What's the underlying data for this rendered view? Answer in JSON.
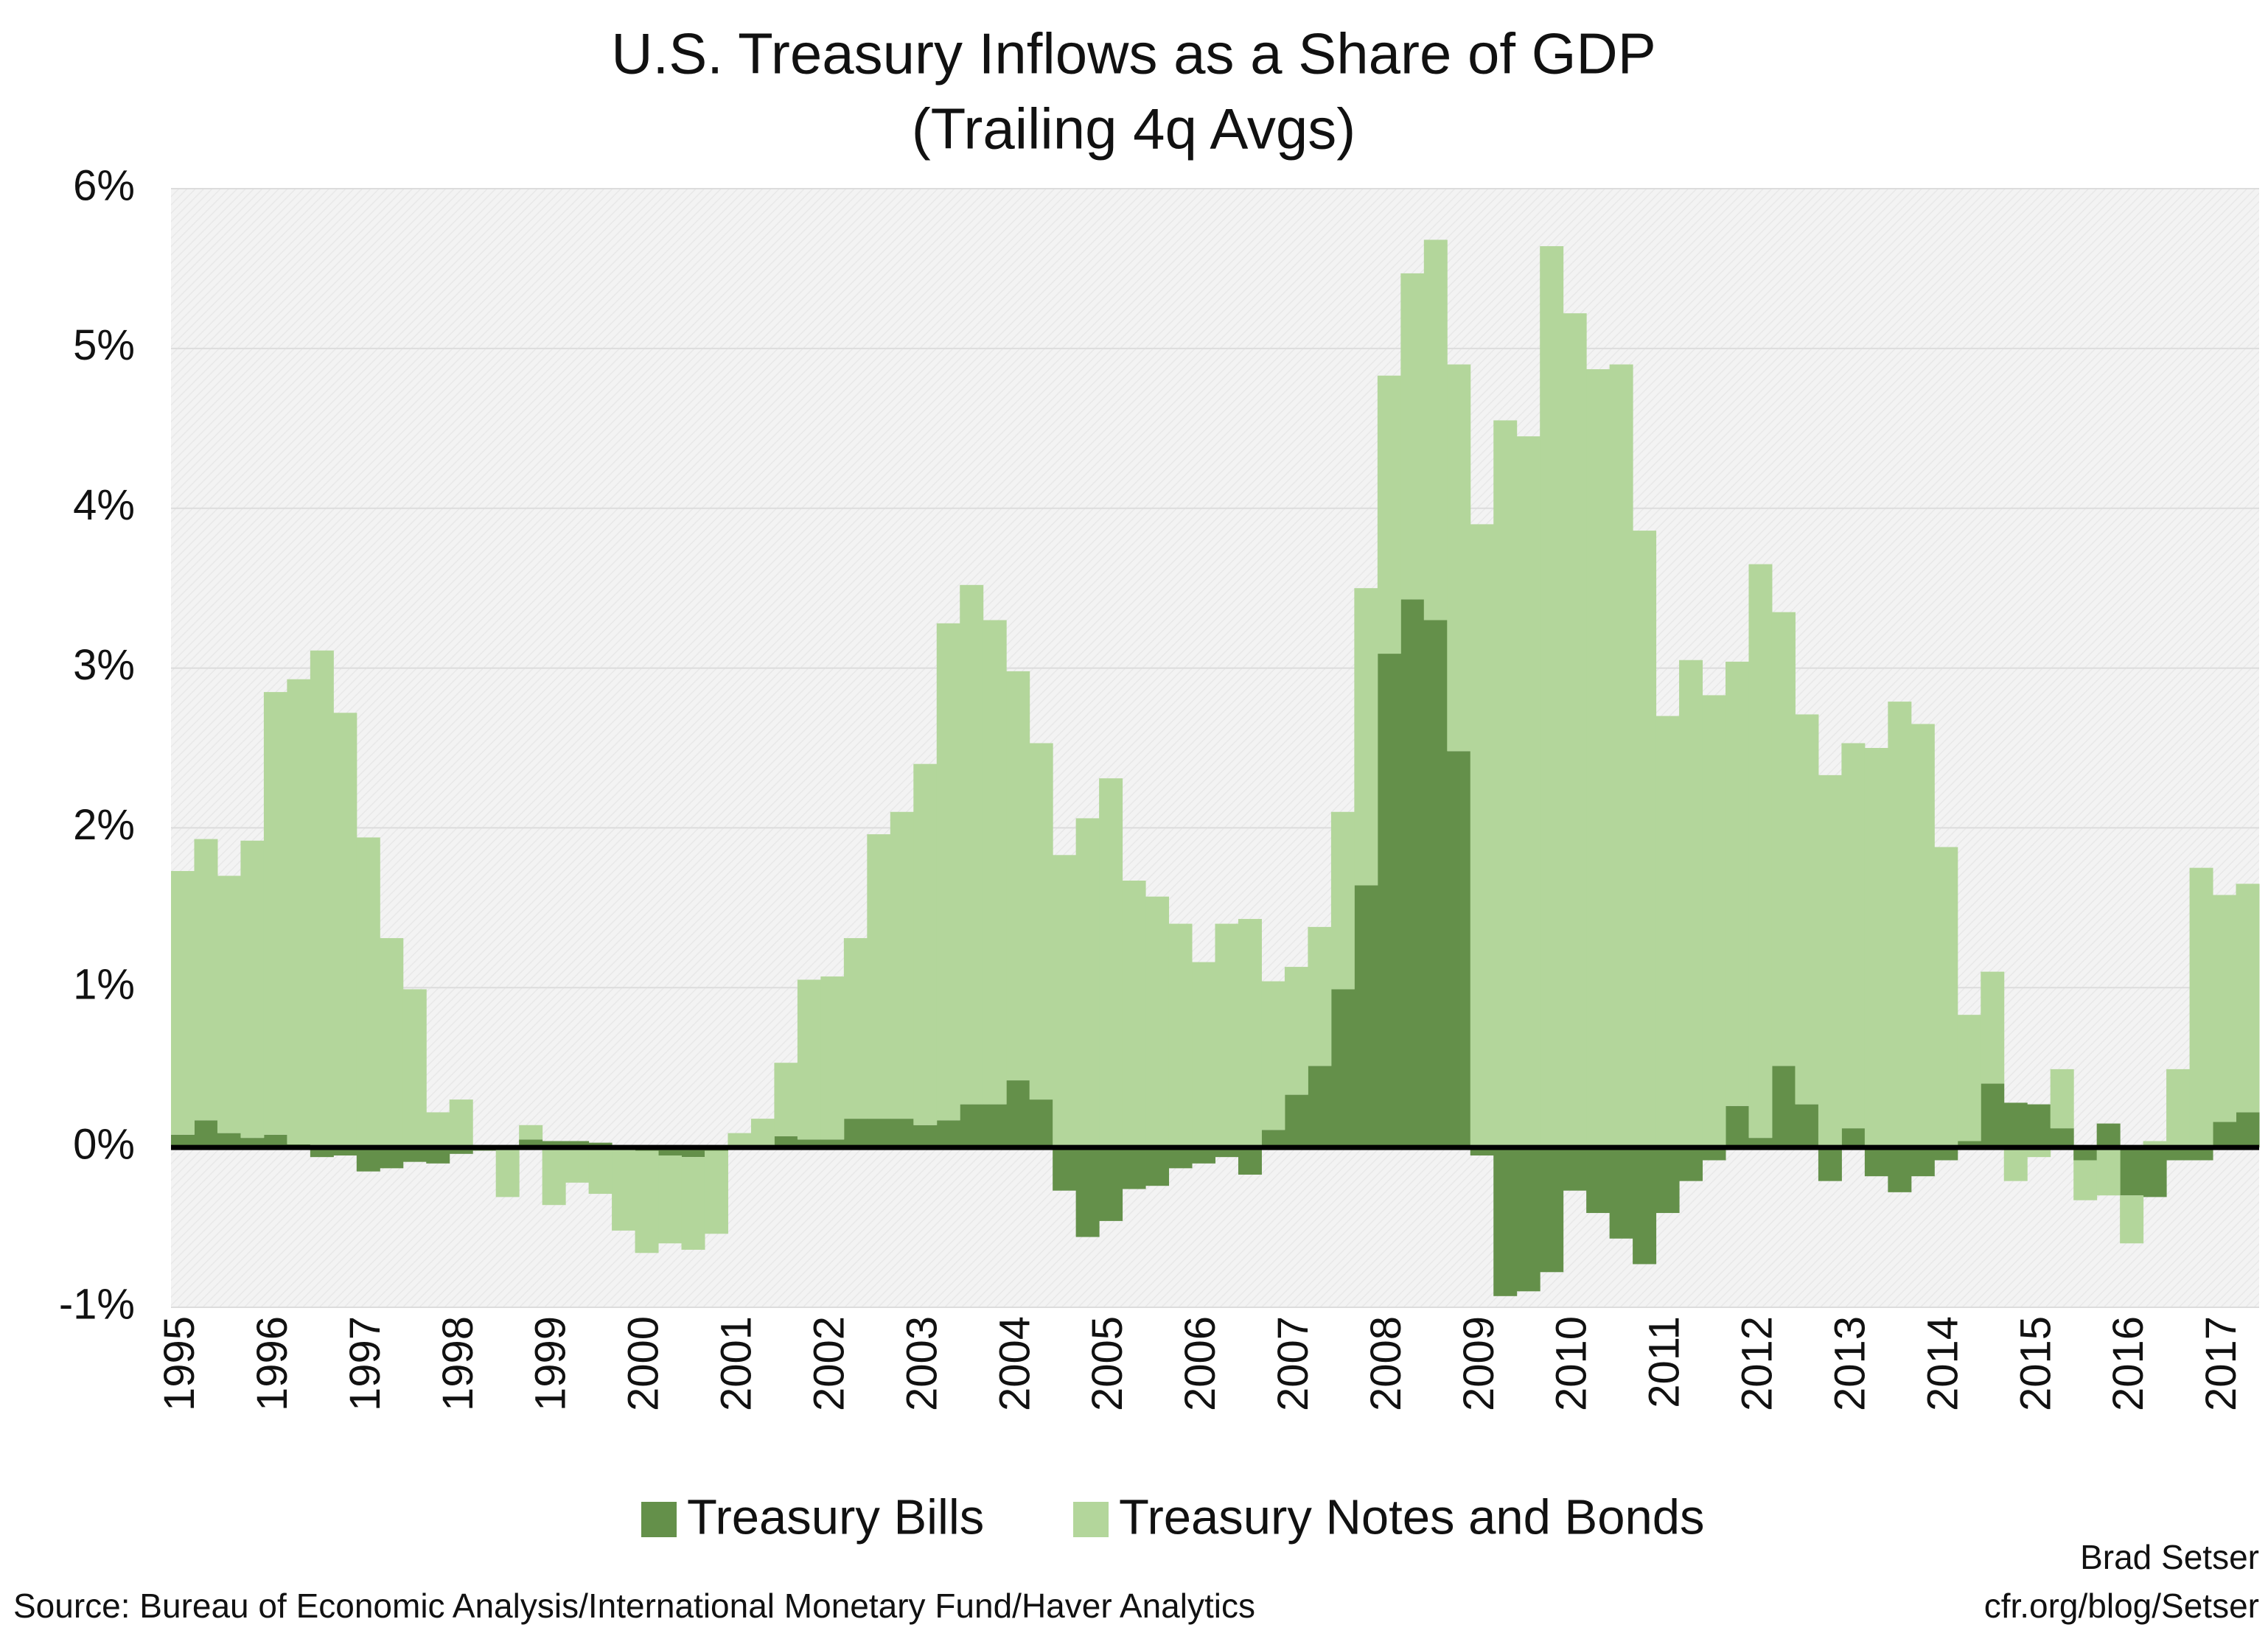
{
  "chart_data": {
    "type": "bar",
    "stacked": true,
    "title": "U.S. Treasury Inflows as a Share of GDP",
    "subtitle": "(Trailing 4q Avgs)",
    "source": "Source: Bureau of Economic Analysis/International Monetary Fund/Haver Analytics",
    "credit": [
      "Brad Setser",
      "cfr.org/blog/Setser"
    ],
    "categories": [
      "1995",
      null,
      null,
      null,
      "1996",
      null,
      null,
      null,
      "1997",
      null,
      null,
      null,
      "1998",
      null,
      null,
      null,
      "1999",
      null,
      null,
      null,
      "2000",
      null,
      null,
      null,
      "2001",
      null,
      null,
      null,
      "2002",
      null,
      null,
      null,
      "2003",
      null,
      null,
      null,
      "2004",
      null,
      null,
      null,
      "2005",
      null,
      null,
      null,
      "2006",
      null,
      null,
      null,
      "2007",
      null,
      null,
      null,
      "2008",
      null,
      null,
      null,
      "2009",
      null,
      null,
      null,
      "2010",
      null,
      null,
      null,
      "2011",
      null,
      null,
      null,
      "2012",
      null,
      null,
      null,
      "2013",
      null,
      null,
      null,
      "2014",
      null,
      null,
      null,
      "2015",
      null,
      null,
      null,
      "2016",
      null,
      null,
      null,
      "2017",
      null
    ],
    "series": [
      {
        "name": "Treasury Bills",
        "color": "#64904a",
        "values": [
          0.08,
          0.17,
          0.09,
          0.06,
          0.08,
          0.02,
          -0.06,
          -0.05,
          -0.15,
          -0.13,
          -0.09,
          -0.1,
          -0.04,
          -0.02,
          -0.01,
          0.05,
          0.04,
          0.04,
          0.03,
          0,
          -0.02,
          -0.05,
          -0.06,
          -0.02,
          0,
          0,
          0.07,
          0.05,
          0.05,
          0.18,
          0.18,
          0.18,
          0.14,
          0.17,
          0.27,
          0.27,
          0.42,
          0.3,
          -0.27,
          -0.56,
          -0.46,
          -0.26,
          -0.24,
          -0.13,
          -0.1,
          -0.06,
          -0.17,
          0.11,
          0.33,
          0.51,
          0.99,
          1.64,
          3.09,
          3.43,
          3.3,
          2.48,
          -0.05,
          -0.93,
          -0.9,
          -0.78,
          -0.27,
          -0.41,
          -0.57,
          -0.73,
          -0.41,
          -0.21,
          -0.08,
          0.26,
          0.06,
          0.51,
          0.27,
          -0.21,
          0.12,
          -0.18,
          -0.28,
          -0.18,
          -0.08,
          0.04,
          0.4,
          0.28,
          0.27,
          0.12,
          -0.08,
          0.15,
          -0.3,
          -0.31,
          -0.08,
          -0.08,
          0.16,
          0.22
        ]
      },
      {
        "name": "Treasury Notes and Bonds",
        "color": "#b3d69b",
        "values": [
          1.65,
          1.76,
          1.61,
          1.86,
          2.77,
          2.91,
          3.11,
          2.72,
          1.94,
          1.31,
          0.99,
          0.22,
          0.3,
          0,
          -0.3,
          0.09,
          -0.36,
          -0.22,
          -0.29,
          -0.52,
          -0.64,
          -0.55,
          -0.58,
          -0.52,
          0.09,
          0.18,
          0.46,
          1.0,
          1.02,
          1.13,
          1.78,
          1.92,
          2.26,
          3.11,
          3.25,
          3.03,
          2.56,
          2.23,
          1.83,
          2.06,
          2.31,
          1.67,
          1.57,
          1.4,
          1.16,
          1.4,
          1.43,
          0.93,
          0.8,
          0.87,
          1.11,
          1.86,
          1.74,
          2.04,
          2.38,
          2.42,
          3.9,
          4.55,
          4.45,
          5.64,
          5.22,
          4.87,
          4.9,
          3.86,
          2.7,
          3.05,
          2.83,
          2.78,
          3.59,
          2.84,
          2.44,
          2.33,
          2.41,
          2.5,
          2.79,
          2.65,
          1.88,
          0.79,
          0.7,
          -0.21,
          -0.06,
          0.37,
          -0.25,
          -0.3,
          -0.3,
          0.04,
          0.49,
          1.75,
          1.42,
          1.43
        ]
      }
    ],
    "ylim": [
      -1,
      6
    ],
    "yticks": [
      {
        "value": -1,
        "label": "-1%"
      },
      {
        "value": 0,
        "label": "0%"
      },
      {
        "value": 1,
        "label": "1%"
      },
      {
        "value": 2,
        "label": "2%"
      },
      {
        "value": 3,
        "label": "3%"
      },
      {
        "value": 4,
        "label": "4%"
      },
      {
        "value": 5,
        "label": "5%"
      },
      {
        "value": 6,
        "label": "6%"
      }
    ],
    "grid": true,
    "legend": "bottom"
  }
}
